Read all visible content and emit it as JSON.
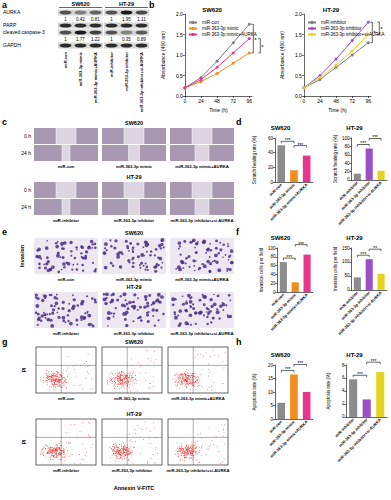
{
  "panel_labels": [
    "a",
    "b",
    "c",
    "d",
    "e",
    "f",
    "g",
    "h"
  ],
  "blot": {
    "groups": [
      {
        "name": "SW620",
        "lanes": [
          "miR-con",
          "miR-363-3p mimic",
          "miR-363-3p mimic+AURKA"
        ]
      },
      {
        "name": "HT-29",
        "lanes": [
          "miR-inhibitor",
          "miR-363-3p inhibitor",
          "miR-363-3p inhibitor+si-AURKA"
        ]
      }
    ],
    "rows": [
      {
        "name": "AURKA",
        "quant": [
          1,
          0.42,
          0.81,
          1,
          1.95,
          1.11
        ]
      },
      {
        "name": "PARP"
      },
      {
        "name": "cleaved caspase-3",
        "quant": [
          1,
          1.77,
          1.22,
          1,
          0.35,
          0.89
        ]
      },
      {
        "name": "GAPDH"
      }
    ]
  },
  "chart_data": [
    {
      "type": "line",
      "title": "SW620",
      "x": [
        0,
        24,
        48,
        72,
        96
      ],
      "xlim": [
        0,
        100
      ],
      "xticks": [
        0,
        24,
        48,
        72,
        96
      ],
      "ylim": [
        0,
        2
      ],
      "yticks": [
        {
          "value": 0,
          "label": "0.0"
        },
        {
          "value": 0.5,
          "label": "0.5"
        },
        {
          "value": 1,
          "label": "1.0"
        },
        {
          "value": 1.5,
          "label": "1.5"
        },
        {
          "value": 2,
          "label": "2.0"
        }
      ],
      "x_label": "Time (h)",
      "y_label": "Absorbance (450 nm)",
      "grid": false,
      "legend": "top-left",
      "series": [
        {
          "name": "miR-con",
          "color": "#7f7f7f",
          "marker": "circle",
          "values": [
            0.2,
            0.45,
            0.85,
            1.3,
            1.75
          ]
        },
        {
          "name": "miR-363-3p mimic",
          "color": "#f28c1c",
          "marker": "circle",
          "values": [
            0.2,
            0.35,
            0.55,
            0.8,
            1.05
          ]
        },
        {
          "name": "miR-363-3p mimic+AURKA",
          "color": "#e8368f",
          "marker": "circle",
          "values": [
            0.2,
            0.4,
            0.7,
            1.05,
            1.4
          ]
        }
      ],
      "annotations": [
        {
          "series": [
            0,
            1
          ],
          "text": "*"
        },
        {
          "series": [
            1,
            2
          ],
          "text": "*"
        }
      ]
    },
    {
      "type": "line",
      "title": "HT-29",
      "x": [
        0,
        24,
        48,
        72,
        96
      ],
      "xlim": [
        0,
        100
      ],
      "xticks": [
        0,
        24,
        48,
        72,
        96
      ],
      "ylim": [
        0,
        2
      ],
      "yticks": [
        {
          "value": 0,
          "label": "0.0"
        },
        {
          "value": 0.5,
          "label": "0.5"
        },
        {
          "value": 1,
          "label": "1.0"
        },
        {
          "value": 1.5,
          "label": "1.5"
        },
        {
          "value": 2,
          "label": "2.0"
        }
      ],
      "x_label": "Time (h)",
      "y_label": "Absorbance (450 nm)",
      "grid": false,
      "legend": "top-left",
      "series": [
        {
          "name": "miR-inhibitor",
          "color": "#7f7f7f",
          "marker": "circle",
          "values": [
            0.2,
            0.4,
            0.7,
            1.0,
            1.3
          ]
        },
        {
          "name": "miR-363-3p inhibitor",
          "color": "#9b4fc9",
          "marker": "circle",
          "values": [
            0.2,
            0.5,
            0.9,
            1.35,
            1.8
          ]
        },
        {
          "name": "miR-363-3p inhibitor+si-AURKA",
          "color": "#e6d320",
          "marker": "circle",
          "values": [
            0.2,
            0.45,
            0.75,
            1.1,
            1.5
          ]
        }
      ],
      "annotations": [
        {
          "series": [
            0,
            1
          ],
          "text": "*"
        },
        {
          "series": [
            1,
            2
          ],
          "text": "*"
        }
      ]
    },
    {
      "type": "bar",
      "title": "SW620",
      "categories": [
        "miR-con",
        "miR-363-3p mimic",
        "miR-363-3p mimic+AURKA"
      ],
      "values": [
        50,
        16,
        36
      ],
      "colors": [
        "#8c8c8c",
        "#f28c1c",
        "#e8368f"
      ],
      "ylim": [
        0,
        60
      ],
      "yticks": [
        0,
        20,
        40,
        60
      ],
      "y_label": "Scratch healing rate (%)",
      "grid": false,
      "annotations": [
        {
          "from": 0,
          "to": 1,
          "text": "***"
        },
        {
          "from": 1,
          "to": 2,
          "text": "***"
        }
      ]
    },
    {
      "type": "bar",
      "title": "HT-29",
      "categories": [
        "miR-inhibitor",
        "miR-363-3p inhibitor",
        "miR-363-3p inhibitor+si-AURKA"
      ],
      "values": [
        15,
        75,
        22
      ],
      "colors": [
        "#8c8c8c",
        "#9b4fc9",
        "#e6d320"
      ],
      "ylim": [
        0,
        100
      ],
      "yticks": [
        0,
        20,
        40,
        60,
        80,
        100
      ],
      "y_label": "Scratch healing rate (%)",
      "grid": false,
      "annotations": [
        {
          "from": 0,
          "to": 1,
          "text": "***"
        },
        {
          "from": 1,
          "to": 2,
          "text": "***"
        }
      ]
    },
    {
      "type": "bar",
      "title": "SW620",
      "categories": [
        "miR-con",
        "miR-363-3p mimic",
        "miR-363-3p mimic+AURKA"
      ],
      "values": [
        68,
        22,
        85
      ],
      "colors": [
        "#8c8c8c",
        "#f28c1c",
        "#e8368f"
      ],
      "ylim": [
        0,
        100
      ],
      "yticks": [
        0,
        20,
        40,
        60,
        80,
        100
      ],
      "y_label": "Invasion cells per field",
      "grid": false,
      "annotations": [
        {
          "from": 0,
          "to": 1,
          "text": "***"
        },
        {
          "from": 1,
          "to": 2,
          "text": "***"
        }
      ]
    },
    {
      "type": "bar",
      "title": "HT-29",
      "categories": [
        "miR-inhibitor",
        "miR-363-3p inhibitor",
        "miR-363-3p inhibitor+si-AURKA"
      ],
      "values": [
        45,
        110,
        58
      ],
      "colors": [
        "#8c8c8c",
        "#9b4fc9",
        "#e6d320"
      ],
      "ylim": [
        0,
        150
      ],
      "yticks": [
        0,
        50,
        100,
        150
      ],
      "y_label": "Invasion cells per field",
      "grid": false,
      "annotations": [
        {
          "from": 0,
          "to": 1,
          "text": "***"
        },
        {
          "from": 1,
          "to": 2,
          "text": "**"
        }
      ]
    },
    {
      "type": "bar",
      "title": "SW620",
      "categories": [
        "miR-con",
        "miR-363-3p mimic",
        "miR-363-3p mimic+AURKA"
      ],
      "values": [
        6,
        16.5,
        10
      ],
      "colors": [
        "#8c8c8c",
        "#f28c1c",
        "#e8368f"
      ],
      "ylim": [
        0,
        20
      ],
      "yticks": [
        0,
        5,
        10,
        15,
        20
      ],
      "y_label": "Apoptosis rate (%)",
      "grid": false,
      "annotations": [
        {
          "from": 0,
          "to": 1,
          "text": "***"
        },
        {
          "from": 1,
          "to": 2,
          "text": "***"
        }
      ]
    },
    {
      "type": "bar",
      "title": "HT-29",
      "categories": [
        "miR-inhibitor",
        "miR-363-3p inhibitor",
        "miR-363-3p inhibitor+si-AURKA"
      ],
      "values": [
        5.8,
        2.7,
        6.9
      ],
      "colors": [
        "#8c8c8c",
        "#9b4fc9",
        "#e6d320"
      ],
      "ylim": [
        0,
        8
      ],
      "yticks": [
        0,
        2,
        4,
        6,
        8
      ],
      "y_label": "Apoptosis rate (%)",
      "grid": false,
      "annotations": [
        {
          "from": 0,
          "to": 1,
          "text": "***"
        },
        {
          "from": 1,
          "to": 2,
          "text": "***"
        }
      ]
    }
  ],
  "scratch": {
    "rows": [
      {
        "name": "SW620",
        "times": [
          "0 h",
          "24 h"
        ],
        "lanes": [
          "miR-con",
          "miR-363-3p mimic",
          "miR-363-3p mimic+AURKA"
        ]
      },
      {
        "name": "HT-29",
        "times": [
          "0 h",
          "24 h"
        ],
        "lanes": [
          "miR-inhibitor",
          "miR-363-3p inhibitor",
          "miR-363-3p inhibitor+si-AURKA"
        ]
      }
    ]
  },
  "invasion": {
    "title": "Invasion",
    "rows": [
      {
        "name": "SW620",
        "lanes": [
          "miR-con",
          "miR-363-3p mimic",
          "miR-363-3p mimic+AURKA"
        ]
      },
      {
        "name": "HT-29",
        "lanes": [
          "miR-inhibitor",
          "miR-363-3p inhibitor",
          "miR-363-3p inhibitor+si-AURKA"
        ]
      }
    ]
  },
  "flow": {
    "x_label": "Annexin V-FITC",
    "y_label": "PI",
    "rows": [
      {
        "name": "SW620",
        "lanes": [
          "miR-con",
          "miR-363-3p mimic",
          "miR-363-3p mimic+AURKA"
        ]
      },
      {
        "name": "HT-29",
        "lanes": [
          "miR-inhibitor",
          "miR-363-3p inhibitor",
          "miR-363-3p inhibitor+si-AURKA"
        ]
      }
    ]
  }
}
